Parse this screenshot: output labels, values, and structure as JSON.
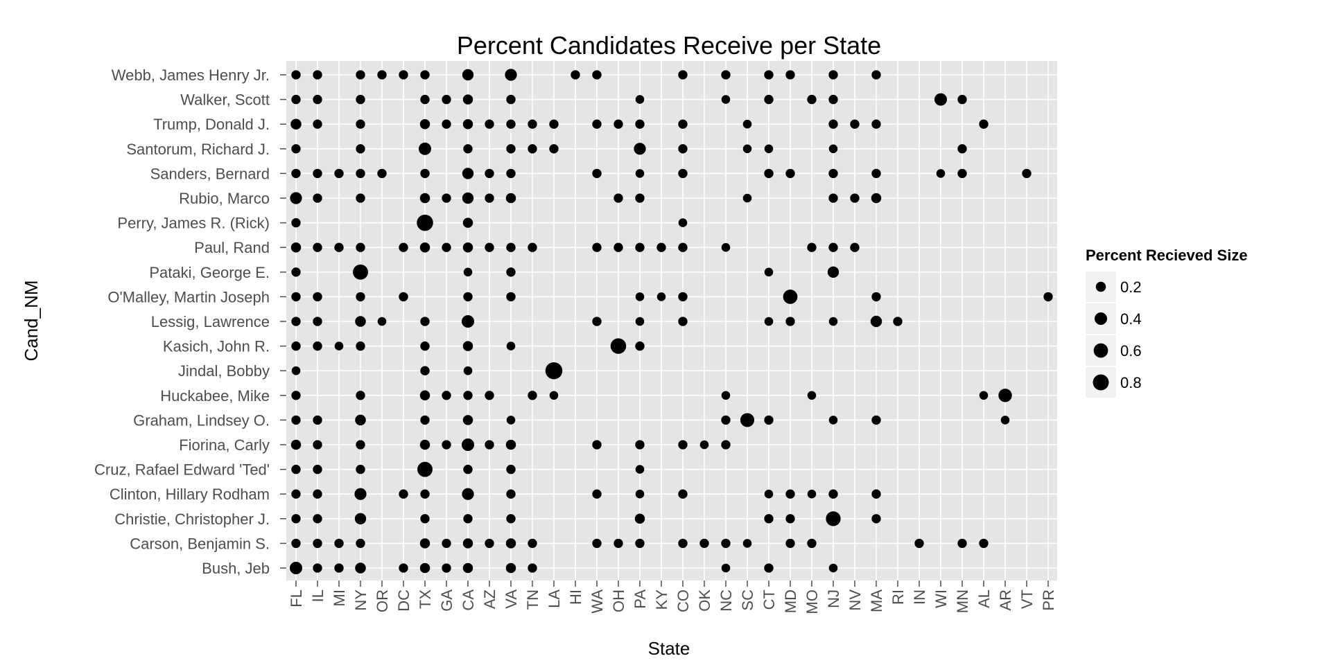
{
  "chart_data": {
    "type": "scatter",
    "title": "Percent Candidates Receive per State",
    "xlabel": "State",
    "ylabel": "Cand_NM",
    "x_categories": [
      "FL",
      "IL",
      "MI",
      "NY",
      "OR",
      "DC",
      "TX",
      "GA",
      "CA",
      "AZ",
      "VA",
      "TN",
      "LA",
      "HI",
      "WA",
      "OH",
      "PA",
      "KY",
      "CO",
      "OK",
      "NC",
      "SC",
      "CT",
      "MD",
      "MO",
      "NJ",
      "NV",
      "MA",
      "RI",
      "IN",
      "WI",
      "MN",
      "AL",
      "AR",
      "VT",
      "PR"
    ],
    "y_categories": [
      "Bush, Jeb",
      "Carson, Benjamin S.",
      "Christie, Christopher J.",
      "Clinton, Hillary Rodham",
      "Cruz, Rafael Edward 'Ted'",
      "Fiorina, Carly",
      "Graham, Lindsey O.",
      "Huckabee, Mike",
      "Jindal, Bobby",
      "Kasich, John R.",
      "Lessig, Lawrence",
      "O'Malley, Martin Joseph",
      "Pataki, George E.",
      "Paul, Rand",
      "Perry, James R. (Rick)",
      "Rubio, Marco",
      "Sanders, Bernard",
      "Santorum, Richard J.",
      "Trump, Donald J.",
      "Walker, Scott",
      "Webb, James Henry Jr."
    ],
    "size_legend": {
      "title": "Percent Recieved Size",
      "values": [
        0.2,
        0.4,
        0.6,
        0.8
      ],
      "labels": [
        "0.2",
        "0.4",
        "0.6",
        "0.8"
      ]
    },
    "grid": true,
    "legend_position": "right",
    "points": [
      {
        "cand": "Webb, James Henry Jr.",
        "states": {
          "FL": 0.15,
          "IL": 0.15,
          "NY": 0.15,
          "OR": 0.15,
          "DC": 0.15,
          "TX": 0.15,
          "CA": 0.3,
          "VA": 0.35,
          "HI": 0.15,
          "WA": 0.15,
          "CO": 0.15,
          "NC": 0.15,
          "CT": 0.15,
          "MD": 0.15,
          "NJ": 0.15,
          "MA": 0.15
        }
      },
      {
        "cand": "Walker, Scott",
        "states": {
          "FL": 0.15,
          "IL": 0.15,
          "NY": 0.15,
          "TX": 0.15,
          "GA": 0.15,
          "CA": 0.2,
          "VA": 0.15,
          "PA": 0.12,
          "NC": 0.12,
          "CT": 0.15,
          "MO": 0.15,
          "NJ": 0.15,
          "WI": 0.4,
          "MN": 0.15
        }
      },
      {
        "cand": "Trump, Donald J.",
        "states": {
          "FL": 0.25,
          "IL": 0.15,
          "NY": 0.15,
          "TX": 0.2,
          "GA": 0.15,
          "CA": 0.2,
          "AZ": 0.15,
          "VA": 0.15,
          "TN": 0.15,
          "LA": 0.15,
          "WA": 0.15,
          "OH": 0.15,
          "PA": 0.15,
          "CO": 0.15,
          "SC": 0.12,
          "NJ": 0.15,
          "NV": 0.15,
          "MA": 0.15,
          "AL": 0.15
        }
      },
      {
        "cand": "Santorum, Richard J.",
        "states": {
          "FL": 0.15,
          "NY": 0.15,
          "TX": 0.4,
          "CA": 0.15,
          "VA": 0.15,
          "TN": 0.15,
          "LA": 0.15,
          "PA": 0.35,
          "CO": 0.15,
          "SC": 0.12,
          "CT": 0.12,
          "NJ": 0.12,
          "MN": 0.15
        }
      },
      {
        "cand": "Sanders, Bernard",
        "states": {
          "FL": 0.15,
          "IL": 0.15,
          "MI": 0.15,
          "NY": 0.15,
          "OR": 0.15,
          "TX": 0.15,
          "CA": 0.3,
          "AZ": 0.15,
          "VA": 0.15,
          "WA": 0.15,
          "PA": 0.12,
          "CO": 0.15,
          "CT": 0.15,
          "MD": 0.15,
          "NJ": 0.15,
          "MA": 0.15,
          "WI": 0.12,
          "MN": 0.15,
          "VT": 0.15
        }
      },
      {
        "cand": "Rubio, Marco",
        "states": {
          "FL": 0.35,
          "IL": 0.15,
          "NY": 0.15,
          "TX": 0.2,
          "GA": 0.15,
          "CA": 0.3,
          "AZ": 0.15,
          "VA": 0.2,
          "OH": 0.15,
          "PA": 0.15,
          "SC": 0.12,
          "NJ": 0.15,
          "NV": 0.15,
          "MA": 0.2
        }
      },
      {
        "cand": "Perry, James R. (Rick)",
        "states": {
          "FL": 0.15,
          "TX": 0.85,
          "CA": 0.2,
          "CO": 0.12
        }
      },
      {
        "cand": "Paul, Rand",
        "states": {
          "FL": 0.2,
          "IL": 0.15,
          "MI": 0.15,
          "NY": 0.15,
          "DC": 0.15,
          "TX": 0.2,
          "GA": 0.15,
          "CA": 0.2,
          "AZ": 0.15,
          "VA": 0.15,
          "TN": 0.15,
          "WA": 0.15,
          "OH": 0.15,
          "PA": 0.15,
          "KY": 0.15,
          "CO": 0.15,
          "NC": 0.12,
          "MO": 0.15,
          "NJ": 0.15,
          "NV": 0.15
        }
      },
      {
        "cand": "Pataki, George E.",
        "states": {
          "FL": 0.15,
          "NY": 0.7,
          "CA": 0.12,
          "VA": 0.15,
          "CT": 0.12,
          "NJ": 0.3
        }
      },
      {
        "cand": "O'Malley, Martin Joseph",
        "states": {
          "FL": 0.15,
          "IL": 0.15,
          "NY": 0.15,
          "DC": 0.15,
          "CA": 0.15,
          "VA": 0.15,
          "PA": 0.12,
          "KY": 0.12,
          "CO": 0.15,
          "MD": 0.6,
          "MA": 0.15,
          "PR": 0.15
        }
      },
      {
        "cand": "Lessig, Lawrence",
        "states": {
          "FL": 0.15,
          "IL": 0.15,
          "NY": 0.25,
          "OR": 0.12,
          "TX": 0.15,
          "CA": 0.4,
          "WA": 0.15,
          "PA": 0.12,
          "CO": 0.15,
          "CT": 0.12,
          "MD": 0.15,
          "NJ": 0.12,
          "MA": 0.3,
          "RI": 0.15
        }
      },
      {
        "cand": "Kasich, John R.",
        "states": {
          "FL": 0.15,
          "IL": 0.15,
          "MI": 0.12,
          "NY": 0.15,
          "TX": 0.15,
          "CA": 0.2,
          "VA": 0.12,
          "OH": 0.75,
          "PA": 0.15
        }
      },
      {
        "cand": "Jindal, Bobby",
        "states": {
          "FL": 0.12,
          "TX": 0.15,
          "CA": 0.12,
          "LA": 0.95
        }
      },
      {
        "cand": "Huckabee, Mike",
        "states": {
          "FL": 0.15,
          "NY": 0.15,
          "TX": 0.2,
          "GA": 0.15,
          "CA": 0.15,
          "AZ": 0.15,
          "TN": 0.15,
          "LA": 0.12,
          "NC": 0.12,
          "MO": 0.12,
          "AL": 0.12,
          "AR": 0.5
        }
      },
      {
        "cand": "Graham, Lindsey O.",
        "states": {
          "FL": 0.15,
          "IL": 0.15,
          "NY": 0.25,
          "TX": 0.15,
          "CA": 0.2,
          "VA": 0.12,
          "NC": 0.15,
          "SC": 0.55,
          "CT": 0.15,
          "NJ": 0.12,
          "MA": 0.15,
          "AR": 0.12
        }
      },
      {
        "cand": "Fiorina, Carly",
        "states": {
          "FL": 0.2,
          "IL": 0.15,
          "NY": 0.15,
          "TX": 0.2,
          "GA": 0.15,
          "CA": 0.4,
          "AZ": 0.15,
          "VA": 0.2,
          "WA": 0.15,
          "PA": 0.15,
          "CO": 0.15,
          "OK": 0.12,
          "NC": 0.15
        }
      },
      {
        "cand": "Cruz, Rafael Edward 'Ted'",
        "states": {
          "FL": 0.15,
          "IL": 0.15,
          "NY": 0.15,
          "TX": 0.7,
          "CA": 0.15,
          "VA": 0.15,
          "PA": 0.12
        }
      },
      {
        "cand": "Clinton, Hillary Rodham",
        "states": {
          "FL": 0.15,
          "IL": 0.15,
          "NY": 0.35,
          "DC": 0.15,
          "TX": 0.15,
          "CA": 0.35,
          "VA": 0.15,
          "WA": 0.15,
          "PA": 0.12,
          "CO": 0.15,
          "CT": 0.12,
          "MD": 0.15,
          "MO": 0.12,
          "NJ": 0.15,
          "MA": 0.15
        }
      },
      {
        "cand": "Christie, Christopher J.",
        "states": {
          "FL": 0.15,
          "IL": 0.15,
          "NY": 0.3,
          "TX": 0.15,
          "CA": 0.15,
          "VA": 0.15,
          "PA": 0.2,
          "CT": 0.15,
          "MD": 0.15,
          "NJ": 0.65,
          "MA": 0.15
        }
      },
      {
        "cand": "Carson, Benjamin S.",
        "states": {
          "FL": 0.15,
          "IL": 0.15,
          "MI": 0.15,
          "NY": 0.15,
          "TX": 0.2,
          "GA": 0.15,
          "CA": 0.2,
          "AZ": 0.15,
          "VA": 0.2,
          "TN": 0.15,
          "WA": 0.15,
          "OH": 0.15,
          "PA": 0.15,
          "CO": 0.15,
          "OK": 0.15,
          "NC": 0.15,
          "SC": 0.12,
          "MD": 0.15,
          "MO": 0.15,
          "IN": 0.15,
          "MN": 0.15,
          "AL": 0.15
        }
      },
      {
        "cand": "Bush, Jeb",
        "states": {
          "FL": 0.4,
          "IL": 0.15,
          "MI": 0.15,
          "NY": 0.25,
          "DC": 0.15,
          "TX": 0.2,
          "GA": 0.15,
          "CA": 0.2,
          "VA": 0.2,
          "TN": 0.15,
          "NC": 0.12,
          "CT": 0.15,
          "NJ": 0.12
        }
      }
    ]
  }
}
